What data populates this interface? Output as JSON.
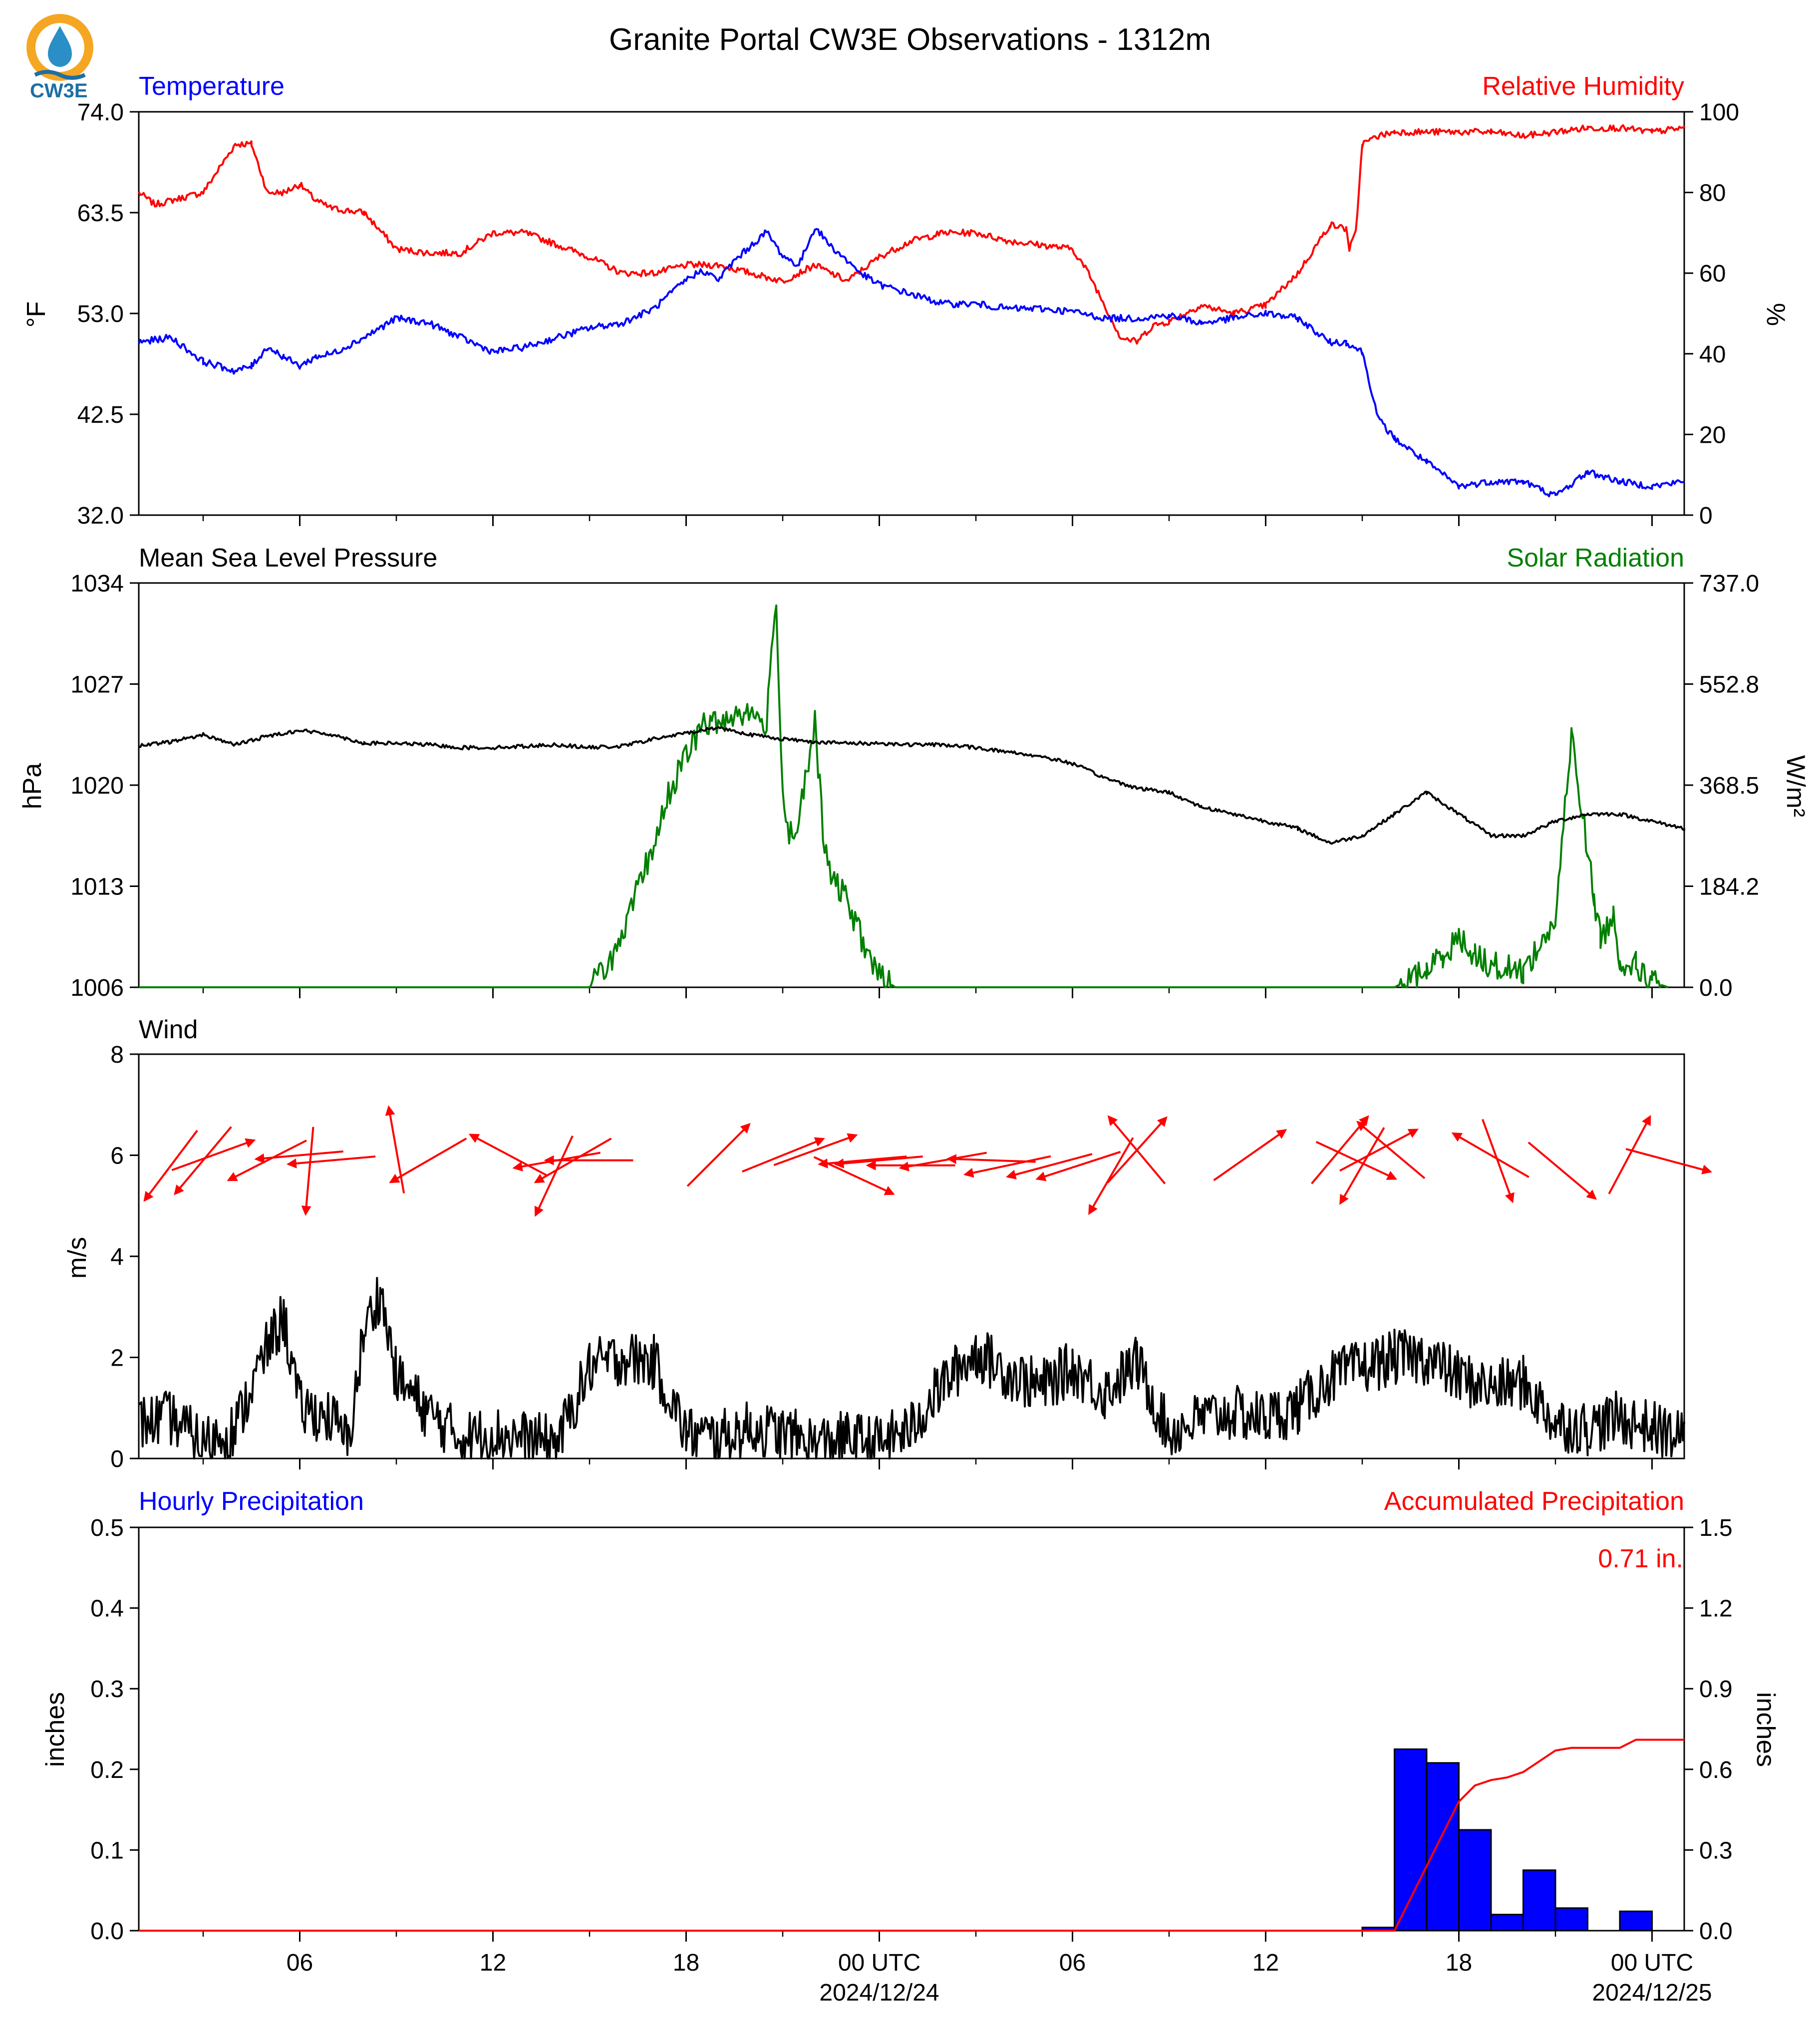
{
  "title": "Granite Portal CW3E Observations - 1312m",
  "logo": {
    "text": "CW3E",
    "colors": {
      "ring": "#f5a623",
      "drop": "#2b8fc7",
      "wave": "#1d6fa5"
    }
  },
  "colors": {
    "temperature": "#0000ff",
    "humidity": "#ff0000",
    "pressure": "#000000",
    "solar": "#007f00",
    "wind_arrows": "#ff0000",
    "wind_speed": "#000000",
    "hourly_precip": "#0000ff",
    "accum_precip": "#ff0000"
  },
  "x_axis": {
    "tick_labels": [
      "06",
      "12",
      "18",
      "00 UTC",
      "06",
      "12",
      "18",
      "00 UTC"
    ],
    "tick_hours": [
      6,
      12,
      18,
      24,
      30,
      36,
      42,
      48
    ],
    "date_labels": [
      {
        "hour": 24,
        "text": "2024/12/24"
      },
      {
        "hour": 48,
        "text": "2024/12/25"
      }
    ],
    "xlim_hours": [
      1,
      49
    ]
  },
  "chart_data": [
    {
      "type": "line",
      "left_title": "Temperature",
      "right_title": "Relative Humidity",
      "ylabel_left": "°F",
      "ylabel_right": "%",
      "ylim_left": [
        32.0,
        74.0
      ],
      "ylim_right": [
        0,
        100
      ],
      "yticks_left": [
        "32.0",
        "42.5",
        "53.0",
        "63.5",
        "74.0"
      ],
      "yticks_right": [
        "0",
        "20",
        "40",
        "60",
        "80",
        "100"
      ],
      "series": [
        {
          "axis": "left",
          "color_key": "temperature",
          "x": [
            1,
            2,
            3,
            4,
            4.5,
            5,
            5.5,
            6,
            6.5,
            7,
            8,
            9,
            10,
            11,
            12,
            13,
            14,
            15,
            16,
            17,
            18,
            18.5,
            19,
            19.5,
            20,
            20.5,
            21,
            21.5,
            22,
            22.5,
            23,
            23.5,
            24,
            25,
            26,
            27,
            28,
            29,
            30,
            31,
            32,
            33,
            34,
            35,
            36,
            37,
            38,
            38.5,
            39,
            39.5,
            40,
            41,
            42,
            43,
            44,
            45,
            46,
            46.5,
            47,
            48,
            49
          ],
          "y": [
            50.0,
            50.5,
            48.0,
            47.0,
            47.5,
            49.5,
            48.5,
            47.5,
            48.5,
            48.8,
            50.5,
            52.5,
            52.0,
            50.5,
            49.0,
            49.5,
            50.5,
            51.5,
            52.0,
            53.5,
            56.5,
            57.5,
            56.5,
            58.5,
            60.0,
            61.5,
            59.0,
            58.0,
            62.0,
            60.0,
            58.5,
            57.0,
            56.0,
            55.0,
            54.0,
            54.0,
            53.5,
            53.5,
            53.2,
            52.5,
            52.5,
            52.8,
            52.0,
            52.5,
            53.0,
            52.5,
            50.0,
            50.0,
            49.0,
            42.0,
            40.0,
            37.5,
            35.0,
            35.5,
            35.5,
            34.0,
            36.5,
            36.0,
            35.5,
            35.0,
            35.5
          ]
        },
        {
          "axis": "right",
          "color_key": "humidity",
          "x": [
            1,
            1.5,
            2,
            3,
            4,
            4.5,
            5,
            5.5,
            6,
            6.5,
            7,
            8,
            9,
            10,
            11,
            12,
            13,
            14,
            15,
            16,
            17,
            18,
            19,
            20,
            21,
            22,
            23,
            24,
            25,
            26,
            27,
            28,
            29,
            30,
            30.5,
            31,
            31.5,
            32,
            32.5,
            33,
            34,
            35,
            36,
            37,
            38,
            38.5,
            38.6,
            38.8,
            39,
            39.5,
            40,
            41,
            42,
            43,
            44,
            45,
            46,
            47,
            48,
            49
          ],
          "y": [
            80,
            77,
            78,
            80,
            92,
            92,
            80,
            80,
            82,
            78,
            76,
            75,
            66,
            65,
            65,
            70,
            70,
            67,
            64,
            60,
            60,
            62,
            62,
            60,
            58,
            62,
            58,
            64,
            68,
            70,
            70,
            68,
            67,
            66,
            60,
            52,
            44,
            43,
            47,
            48,
            52,
            50,
            52,
            60,
            72,
            71,
            66,
            70,
            92,
            94,
            95,
            95,
            95,
            95,
            94,
            95,
            96,
            96,
            95,
            96
          ]
        },
        {
          "axis": "right",
          "color_key": "humidity",
          "note_style": "noise"
        }
      ]
    },
    {
      "type": "line",
      "left_title": "Mean Sea Level Pressure",
      "right_title": "Solar Radiation",
      "ylabel_left": "hPa",
      "ylabel_right": "W/m²",
      "ylim_left": [
        1006,
        1034
      ],
      "ylim_right": [
        0.0,
        737.0
      ],
      "yticks_left": [
        "1006",
        "1013",
        "1020",
        "1027",
        "1034"
      ],
      "yticks_right": [
        "0.0",
        "184.2",
        "368.5",
        "552.8",
        "737.0"
      ],
      "series": [
        {
          "axis": "left",
          "color_key": "pressure",
          "x": [
            1,
            2,
            3,
            4,
            5,
            6,
            7,
            8,
            9,
            10,
            11,
            12,
            13,
            14,
            15,
            16,
            17,
            18,
            19,
            20,
            21,
            22,
            23,
            24,
            25,
            26,
            27,
            28,
            29,
            30,
            31,
            32,
            33,
            34,
            35,
            36,
            37,
            38,
            39,
            40,
            41,
            42,
            43,
            44,
            45,
            46,
            47,
            48,
            49
          ],
          "y": [
            1022.7,
            1023.0,
            1023.5,
            1022.8,
            1023.4,
            1023.8,
            1023.5,
            1022.9,
            1022.9,
            1022.8,
            1022.6,
            1022.6,
            1022.7,
            1022.8,
            1022.6,
            1022.7,
            1023.2,
            1023.6,
            1024.0,
            1023.5,
            1023.2,
            1023.0,
            1022.9,
            1022.9,
            1022.8,
            1022.8,
            1022.6,
            1022.3,
            1022.0,
            1021.5,
            1020.5,
            1019.8,
            1019.5,
            1018.5,
            1018.0,
            1017.5,
            1017.0,
            1016.0,
            1016.5,
            1018.0,
            1019.5,
            1018.0,
            1016.5,
            1016.5,
            1017.5,
            1018.0,
            1018.0,
            1017.5,
            1017.0
          ]
        },
        {
          "axis": "right",
          "color_key": "solar",
          "x": [
            1,
            15,
            16,
            16.5,
            17,
            17.5,
            18,
            18.5,
            19,
            19.5,
            20,
            20.5,
            20.8,
            21,
            21.2,
            21.5,
            22,
            22.3,
            22.5,
            23,
            23.5,
            24,
            24.5,
            25,
            26,
            40,
            41,
            41.5,
            42,
            42.5,
            43,
            44,
            45,
            45.5,
            46,
            46.2,
            46.4,
            46.8,
            47,
            47.5,
            48,
            48.5
          ],
          "y": [
            0,
            0,
            80,
            180,
            260,
            360,
            420,
            480,
            480,
            500,
            500,
            480,
            710,
            350,
            280,
            300,
            480,
            250,
            200,
            160,
            80,
            20,
            0,
            0,
            0,
            0,
            30,
            60,
            90,
            60,
            40,
            30,
            120,
            460,
            250,
            160,
            90,
            130,
            50,
            40,
            10,
            0
          ]
        }
      ]
    },
    {
      "type": "line",
      "left_title": "Wind",
      "ylabel_left": "m/s",
      "ylim_left": [
        0,
        8
      ],
      "yticks_left": [
        "0",
        "2",
        "4",
        "6",
        "8"
      ],
      "series": [
        {
          "axis": "left",
          "color_key": "wind_speed",
          "x": [
            1,
            2,
            3,
            4,
            5,
            5.5,
            6,
            7,
            7.5,
            8,
            8.5,
            9,
            10,
            11,
            12,
            13,
            14,
            15,
            16,
            17,
            18,
            19,
            20,
            21,
            22,
            23,
            24,
            25,
            26,
            27,
            28,
            29,
            30,
            31,
            32,
            33,
            34,
            35,
            36,
            37,
            38,
            39,
            40,
            41,
            42,
            43,
            44,
            45,
            46,
            47,
            48,
            49
          ],
          "y": [
            0.7,
            0.8,
            0.3,
            0.6,
            2.2,
            2.8,
            1.0,
            0.8,
            0.3,
            2.5,
            3.3,
            1.6,
            0.9,
            0.4,
            0.5,
            0.4,
            0.3,
            1.8,
            2.0,
            1.9,
            0.5,
            0.4,
            0.6,
            0.5,
            0.3,
            0.4,
            0.3,
            0.6,
            1.5,
            2.1,
            1.7,
            1.4,
            1.8,
            1.3,
            1.9,
            0.5,
            0.8,
            0.9,
            0.8,
            1.0,
            1.6,
            1.8,
            2.0,
            2.0,
            1.6,
            1.4,
            1.5,
            0.7,
            0.6,
            0.8,
            0.6,
            0.4
          ]
        }
      ],
      "arrows": [
        {
          "x": 2.0,
          "y": 5.8,
          "angle": 233
        },
        {
          "x": 3.0,
          "y": 5.9,
          "angle": 230
        },
        {
          "x": 3.3,
          "y": 6.0,
          "angle": 20
        },
        {
          "x": 5.0,
          "y": 5.9,
          "angle": 207
        },
        {
          "x": 6.0,
          "y": 6.0,
          "angle": 185
        },
        {
          "x": 6.3,
          "y": 5.7,
          "angle": 265
        },
        {
          "x": 7.0,
          "y": 5.9,
          "angle": 185
        },
        {
          "x": 9.0,
          "y": 6.1,
          "angle": 100
        },
        {
          "x": 10.0,
          "y": 5.9,
          "angle": 210
        },
        {
          "x": 12.5,
          "y": 6.0,
          "angle": 152
        },
        {
          "x": 14.0,
          "y": 5.9,
          "angle": 190
        },
        {
          "x": 14.5,
          "y": 5.9,
          "angle": 210
        },
        {
          "x": 13.9,
          "y": 5.6,
          "angle": 245
        },
        {
          "x": 15.0,
          "y": 5.9,
          "angle": 180
        },
        {
          "x": 19.0,
          "y": 6.0,
          "angle": 45
        },
        {
          "x": 21.0,
          "y": 6.0,
          "angle": 22
        },
        {
          "x": 22.0,
          "y": 6.1,
          "angle": 20
        },
        {
          "x": 23.5,
          "y": 5.9,
          "angle": 185
        },
        {
          "x": 24.0,
          "y": 5.9,
          "angle": 185
        },
        {
          "x": 25.0,
          "y": 5.8,
          "angle": 180
        },
        {
          "x": 26.0,
          "y": 5.9,
          "angle": 190
        },
        {
          "x": 27.5,
          "y": 5.9,
          "angle": 178
        },
        {
          "x": 28.0,
          "y": 5.8,
          "angle": 192
        },
        {
          "x": 29.3,
          "y": 5.8,
          "angle": 195
        },
        {
          "x": 23.2,
          "y": 5.6,
          "angle": 335
        },
        {
          "x": 30.2,
          "y": 5.8,
          "angle": 198
        },
        {
          "x": 31.2,
          "y": 5.6,
          "angle": 240
        },
        {
          "x": 32.0,
          "y": 6.1,
          "angle": 130
        },
        {
          "x": 32.0,
          "y": 6.1,
          "angle": 48
        },
        {
          "x": 35.5,
          "y": 6.0,
          "angle": 35
        },
        {
          "x": 38.3,
          "y": 6.1,
          "angle": 50
        },
        {
          "x": 39.0,
          "y": 5.8,
          "angle": 240
        },
        {
          "x": 39.9,
          "y": 6.1,
          "angle": 140
        },
        {
          "x": 39.5,
          "y": 6.1,
          "angle": 28
        },
        {
          "x": 38.8,
          "y": 5.9,
          "angle": 335
        },
        {
          "x": 43.0,
          "y": 6.0,
          "angle": 150
        },
        {
          "x": 43.2,
          "y": 5.9,
          "angle": 290
        },
        {
          "x": 45.2,
          "y": 5.7,
          "angle": 320
        },
        {
          "x": 47.3,
          "y": 6.0,
          "angle": 62
        },
        {
          "x": 48.5,
          "y": 5.9,
          "angle": 345
        }
      ]
    },
    {
      "type": "bar",
      "left_title": "Hourly Precipitation",
      "right_title": "Accumulated Precipitation",
      "ylabel_left": "inches",
      "ylabel_right": "inches",
      "ylim_left": [
        0.0,
        0.5
      ],
      "ylim_right": [
        0.0,
        1.5
      ],
      "yticks_left": [
        "0.0",
        "0.1",
        "0.2",
        "0.3",
        "0.4",
        "0.5"
      ],
      "yticks_right": [
        "0.0",
        "0.3",
        "0.6",
        "0.9",
        "1.2",
        "1.5"
      ],
      "total_label": "0.71 in.",
      "bars": {
        "color_key": "hourly_precip",
        "hour_start": [
          39,
          40,
          41,
          42,
          43,
          44,
          45,
          46,
          47
        ],
        "values": [
          0.004,
          0.225,
          0.208,
          0.125,
          0.02,
          0.075,
          0.028,
          0.0,
          0.024
        ]
      },
      "accumulated": {
        "color_key": "accum_precip",
        "x": [
          1,
          40,
          40.5,
          41,
          41.5,
          42,
          42.5,
          43,
          43.5,
          44,
          44.5,
          45,
          45.5,
          46,
          46.5,
          47,
          47.5,
          49
        ],
        "y": [
          0,
          0.0,
          0.12,
          0.24,
          0.36,
          0.48,
          0.54,
          0.56,
          0.57,
          0.59,
          0.63,
          0.67,
          0.68,
          0.68,
          0.68,
          0.68,
          0.71,
          0.71
        ]
      }
    }
  ]
}
